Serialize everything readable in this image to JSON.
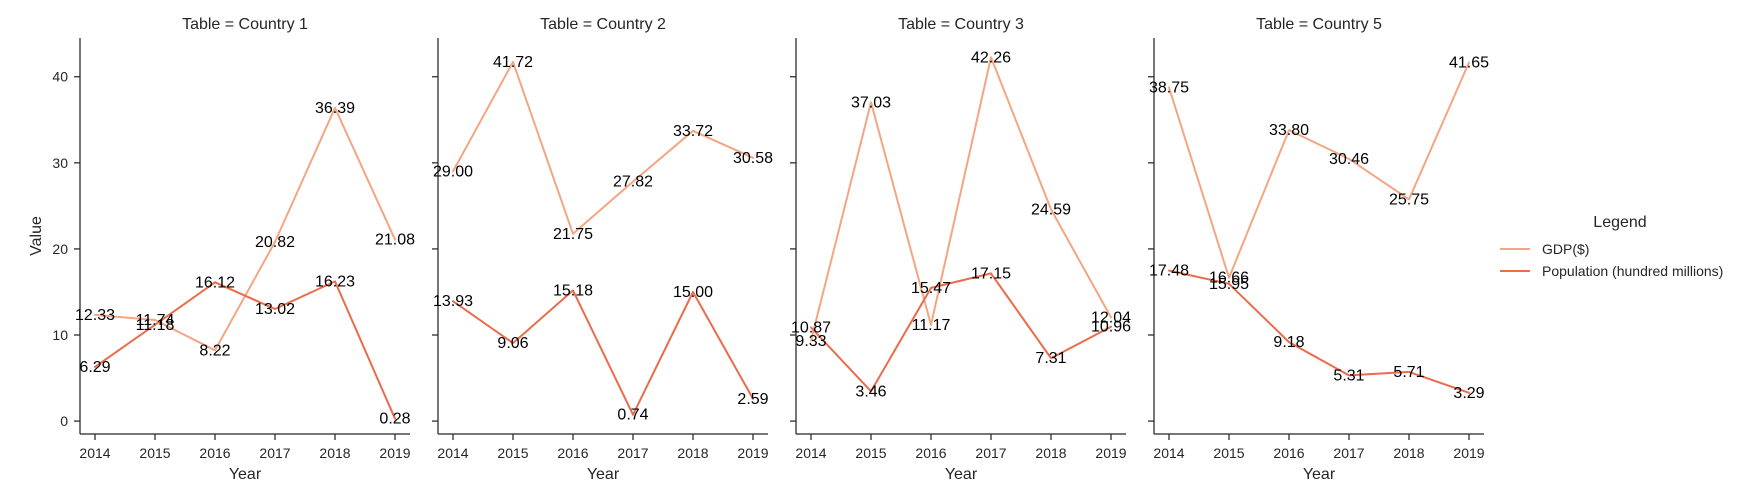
{
  "chart_data": {
    "type": "line",
    "facet_title_prefix": "Table = ",
    "xlabel": "Year",
    "ylabel": "Value",
    "x": [
      2014,
      2015,
      2016,
      2017,
      2018,
      2019
    ],
    "ylim": [
      -1.5,
      44.5
    ],
    "yticks": [
      0,
      10,
      20,
      30,
      40
    ],
    "legend": {
      "title": "Legend",
      "position": "right",
      "entries": [
        {
          "name": "GDP($)",
          "color": "#f4a582"
        },
        {
          "name": "Population (hundred millions)",
          "color": "#eb6b4a"
        }
      ]
    },
    "panels": [
      {
        "name": "Country 1",
        "title": "Table = Country 1",
        "series": [
          {
            "name": "GDP($)",
            "values": [
              12.33,
              11.74,
              8.22,
              20.82,
              36.39,
              21.08
            ],
            "labels": [
              "12.33",
              "11.74",
              "8.22",
              "20.82",
              "36.39",
              "21.08"
            ]
          },
          {
            "name": "Population (hundred millions)",
            "values": [
              6.29,
              11.18,
              16.12,
              13.02,
              16.23,
              0.28
            ],
            "labels": [
              "6.29",
              "11.18",
              "16.12",
              "13.02",
              "16.23",
              "0.28"
            ]
          }
        ]
      },
      {
        "name": "Country 2",
        "title": "Table = Country 2",
        "series": [
          {
            "name": "GDP($)",
            "values": [
              29.0,
              41.72,
              21.75,
              27.82,
              33.72,
              30.58
            ],
            "labels": [
              "29.00",
              "41.72",
              "21.75",
              "27.82",
              "33.72",
              "30.58"
            ]
          },
          {
            "name": "Population (hundred millions)",
            "values": [
              13.93,
              9.06,
              15.18,
              0.74,
              15.0,
              2.59
            ],
            "labels": [
              "13.93",
              "9.06",
              "15.18",
              "0.74",
              "15.00",
              "2.59"
            ]
          }
        ]
      },
      {
        "name": "Country 3",
        "title": "Table = Country 3",
        "series": [
          {
            "name": "GDP($)",
            "values": [
              9.33,
              37.03,
              11.17,
              42.26,
              24.59,
              12.04
            ],
            "labels": [
              "9.33",
              "37.03",
              "11.17",
              "42.26",
              "24.59",
              "12.04"
            ]
          },
          {
            "name": "Population (hundred millions)",
            "values": [
              10.87,
              3.46,
              15.47,
              17.15,
              7.31,
              10.96
            ],
            "labels": [
              "10.87",
              "3.46",
              "15.47",
              "17.15",
              "7.31",
              "10.96"
            ]
          }
        ]
      },
      {
        "name": "Country 5",
        "title": "Table = Country 5",
        "series": [
          {
            "name": "GDP($)",
            "values": [
              38.75,
              16.66,
              33.8,
              30.46,
              25.75,
              41.65
            ],
            "labels": [
              "38.75",
              "16.66",
              "33.80",
              "30.46",
              "25.75",
              "41.65"
            ]
          },
          {
            "name": "Population (hundred millions)",
            "values": [
              17.48,
              15.95,
              9.18,
              5.31,
              5.71,
              3.29
            ],
            "labels": [
              "17.48",
              "15.95",
              "9.18",
              "5.31",
              "5.71",
              "3.29"
            ]
          }
        ]
      }
    ]
  }
}
